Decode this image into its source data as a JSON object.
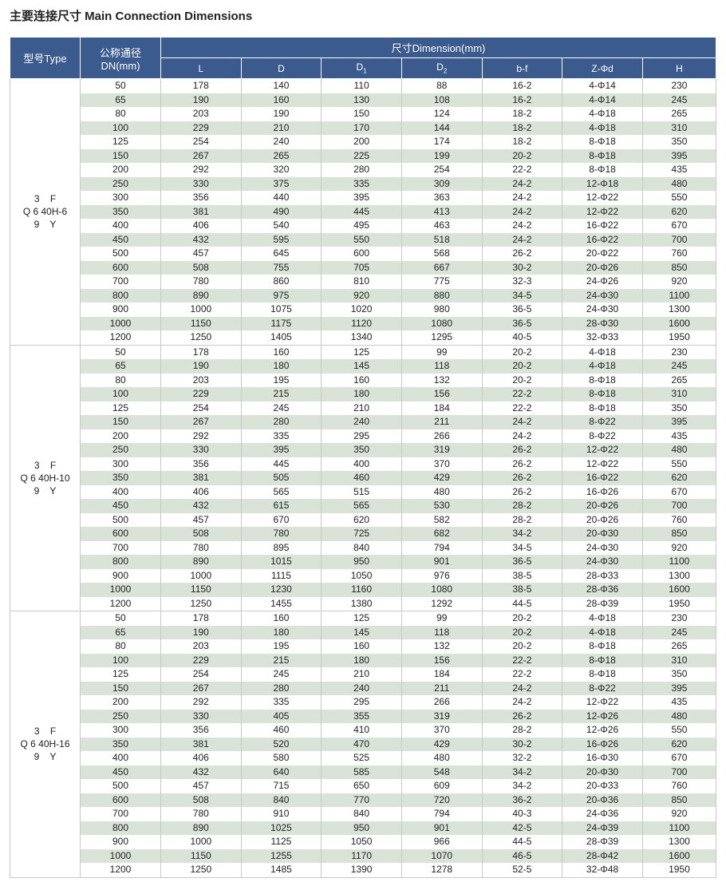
{
  "title": "主要连接尺寸  Main Connection Dimensions",
  "header": {
    "type": "型号Type",
    "dn_line1": "公称通径",
    "dn_line2": "DN(mm)",
    "dimension": "尺寸Dimension(mm)",
    "columns": [
      "L",
      "D",
      "D",
      "D",
      "b-f",
      "Z-Φd",
      "H"
    ],
    "subscripts": [
      "",
      "",
      "1",
      "2",
      "",
      "",
      ""
    ]
  },
  "colors": {
    "header_bg": "#3b5a8e",
    "alt_row": "#d9e3d8"
  },
  "groups": [
    {
      "type_lines": [
        "3    F",
        "Q 6 40H-6",
        "9    Y"
      ],
      "rows": [
        [
          "50",
          "178",
          "140",
          "110",
          "88",
          "16-2",
          "4-Φ14",
          "230"
        ],
        [
          "65",
          "190",
          "160",
          "130",
          "108",
          "16-2",
          "4-Φ14",
          "245"
        ],
        [
          "80",
          "203",
          "190",
          "150",
          "124",
          "18-2",
          "4-Φ18",
          "265"
        ],
        [
          "100",
          "229",
          "210",
          "170",
          "144",
          "18-2",
          "4-Φ18",
          "310"
        ],
        [
          "125",
          "254",
          "240",
          "200",
          "174",
          "18-2",
          "8-Φ18",
          "350"
        ],
        [
          "150",
          "267",
          "265",
          "225",
          "199",
          "20-2",
          "8-Φ18",
          "395"
        ],
        [
          "200",
          "292",
          "320",
          "280",
          "254",
          "22-2",
          "8-Φ18",
          "435"
        ],
        [
          "250",
          "330",
          "375",
          "335",
          "309",
          "24-2",
          "12-Φ18",
          "480"
        ],
        [
          "300",
          "356",
          "440",
          "395",
          "363",
          "24-2",
          "12-Φ22",
          "550"
        ],
        [
          "350",
          "381",
          "490",
          "445",
          "413",
          "24-2",
          "12-Φ22",
          "620"
        ],
        [
          "400",
          "406",
          "540",
          "495",
          "463",
          "24-2",
          "16-Φ22",
          "670"
        ],
        [
          "450",
          "432",
          "595",
          "550",
          "518",
          "24-2",
          "16-Φ22",
          "700"
        ],
        [
          "500",
          "457",
          "645",
          "600",
          "568",
          "26-2",
          "20-Φ22",
          "760"
        ],
        [
          "600",
          "508",
          "755",
          "705",
          "667",
          "30-2",
          "20-Φ26",
          "850"
        ],
        [
          "700",
          "780",
          "860",
          "810",
          "775",
          "32-3",
          "24-Φ26",
          "920"
        ],
        [
          "800",
          "890",
          "975",
          "920",
          "880",
          "34-5",
          "24-Φ30",
          "1100"
        ],
        [
          "900",
          "1000",
          "1075",
          "1020",
          "980",
          "36-5",
          "24-Φ30",
          "1300"
        ],
        [
          "1000",
          "1150",
          "1175",
          "1120",
          "1080",
          "36-5",
          "28-Φ30",
          "1600"
        ],
        [
          "1200",
          "1250",
          "1405",
          "1340",
          "1295",
          "40-5",
          "32-Φ33",
          "1950"
        ]
      ]
    },
    {
      "type_lines": [
        "3    F",
        "Q 6 40H-10",
        "9    Y"
      ],
      "rows": [
        [
          "50",
          "178",
          "160",
          "125",
          "99",
          "20-2",
          "4-Φ18",
          "230"
        ],
        [
          "65",
          "190",
          "180",
          "145",
          "118",
          "20-2",
          "4-Φ18",
          "245"
        ],
        [
          "80",
          "203",
          "195",
          "160",
          "132",
          "20-2",
          "8-Φ18",
          "265"
        ],
        [
          "100",
          "229",
          "215",
          "180",
          "156",
          "22-2",
          "8-Φ18",
          "310"
        ],
        [
          "125",
          "254",
          "245",
          "210",
          "184",
          "22-2",
          "8-Φ18",
          "350"
        ],
        [
          "150",
          "267",
          "280",
          "240",
          "211",
          "24-2",
          "8-Φ22",
          "395"
        ],
        [
          "200",
          "292",
          "335",
          "295",
          "266",
          "24-2",
          "8-Φ22",
          "435"
        ],
        [
          "250",
          "330",
          "395",
          "350",
          "319",
          "26-2",
          "12-Φ22",
          "480"
        ],
        [
          "300",
          "356",
          "445",
          "400",
          "370",
          "26-2",
          "12-Φ22",
          "550"
        ],
        [
          "350",
          "381",
          "505",
          "460",
          "429",
          "26-2",
          "16-Φ22",
          "620"
        ],
        [
          "400",
          "406",
          "565",
          "515",
          "480",
          "26-2",
          "16-Φ26",
          "670"
        ],
        [
          "450",
          "432",
          "615",
          "565",
          "530",
          "28-2",
          "20-Φ26",
          "700"
        ],
        [
          "500",
          "457",
          "670",
          "620",
          "582",
          "28-2",
          "20-Φ26",
          "760"
        ],
        [
          "600",
          "508",
          "780",
          "725",
          "682",
          "34-2",
          "20-Φ30",
          "850"
        ],
        [
          "700",
          "780",
          "895",
          "840",
          "794",
          "34-5",
          "24-Φ30",
          "920"
        ],
        [
          "800",
          "890",
          "1015",
          "950",
          "901",
          "36-5",
          "24-Φ30",
          "1100"
        ],
        [
          "900",
          "1000",
          "1115",
          "1050",
          "976",
          "38-5",
          "28-Φ33",
          "1300"
        ],
        [
          "1000",
          "1150",
          "1230",
          "1160",
          "1080",
          "38-5",
          "28-Φ36",
          "1600"
        ],
        [
          "1200",
          "1250",
          "1455",
          "1380",
          "1292",
          "44-5",
          "28-Φ39",
          "1950"
        ]
      ]
    },
    {
      "type_lines": [
        "3    F",
        "Q 6 40H-16",
        "9    Y"
      ],
      "rows": [
        [
          "50",
          "178",
          "160",
          "125",
          "99",
          "20-2",
          "4-Φ18",
          "230"
        ],
        [
          "65",
          "190",
          "180",
          "145",
          "118",
          "20-2",
          "4-Φ18",
          "245"
        ],
        [
          "80",
          "203",
          "195",
          "160",
          "132",
          "20-2",
          "8-Φ18",
          "265"
        ],
        [
          "100",
          "229",
          "215",
          "180",
          "156",
          "22-2",
          "8-Φ18",
          "310"
        ],
        [
          "125",
          "254",
          "245",
          "210",
          "184",
          "22-2",
          "8-Φ18",
          "350"
        ],
        [
          "150",
          "267",
          "280",
          "240",
          "211",
          "24-2",
          "8-Φ22",
          "395"
        ],
        [
          "200",
          "292",
          "335",
          "295",
          "266",
          "24-2",
          "12-Φ22",
          "435"
        ],
        [
          "250",
          "330",
          "405",
          "355",
          "319",
          "26-2",
          "12-Φ26",
          "480"
        ],
        [
          "300",
          "356",
          "460",
          "410",
          "370",
          "28-2",
          "12-Φ26",
          "550"
        ],
        [
          "350",
          "381",
          "520",
          "470",
          "429",
          "30-2",
          "16-Φ26",
          "620"
        ],
        [
          "400",
          "406",
          "580",
          "525",
          "480",
          "32-2",
          "16-Φ30",
          "670"
        ],
        [
          "450",
          "432",
          "640",
          "585",
          "548",
          "34-2",
          "20-Φ30",
          "700"
        ],
        [
          "500",
          "457",
          "715",
          "650",
          "609",
          "34-2",
          "20-Φ33",
          "760"
        ],
        [
          "600",
          "508",
          "840",
          "770",
          "720",
          "36-2",
          "20-Φ36",
          "850"
        ],
        [
          "700",
          "780",
          "910",
          "840",
          "794",
          "40-3",
          "24-Φ36",
          "920"
        ],
        [
          "800",
          "890",
          "1025",
          "950",
          "901",
          "42-5",
          "24-Φ39",
          "1100"
        ],
        [
          "900",
          "1000",
          "1125",
          "1050",
          "966",
          "44-5",
          "28-Φ39",
          "1300"
        ],
        [
          "1000",
          "1150",
          "1255",
          "1170",
          "1070",
          "46-5",
          "28-Φ42",
          "1600"
        ],
        [
          "1200",
          "1250",
          "1485",
          "1390",
          "1278",
          "52-5",
          "32-Φ48",
          "1950"
        ]
      ]
    }
  ]
}
